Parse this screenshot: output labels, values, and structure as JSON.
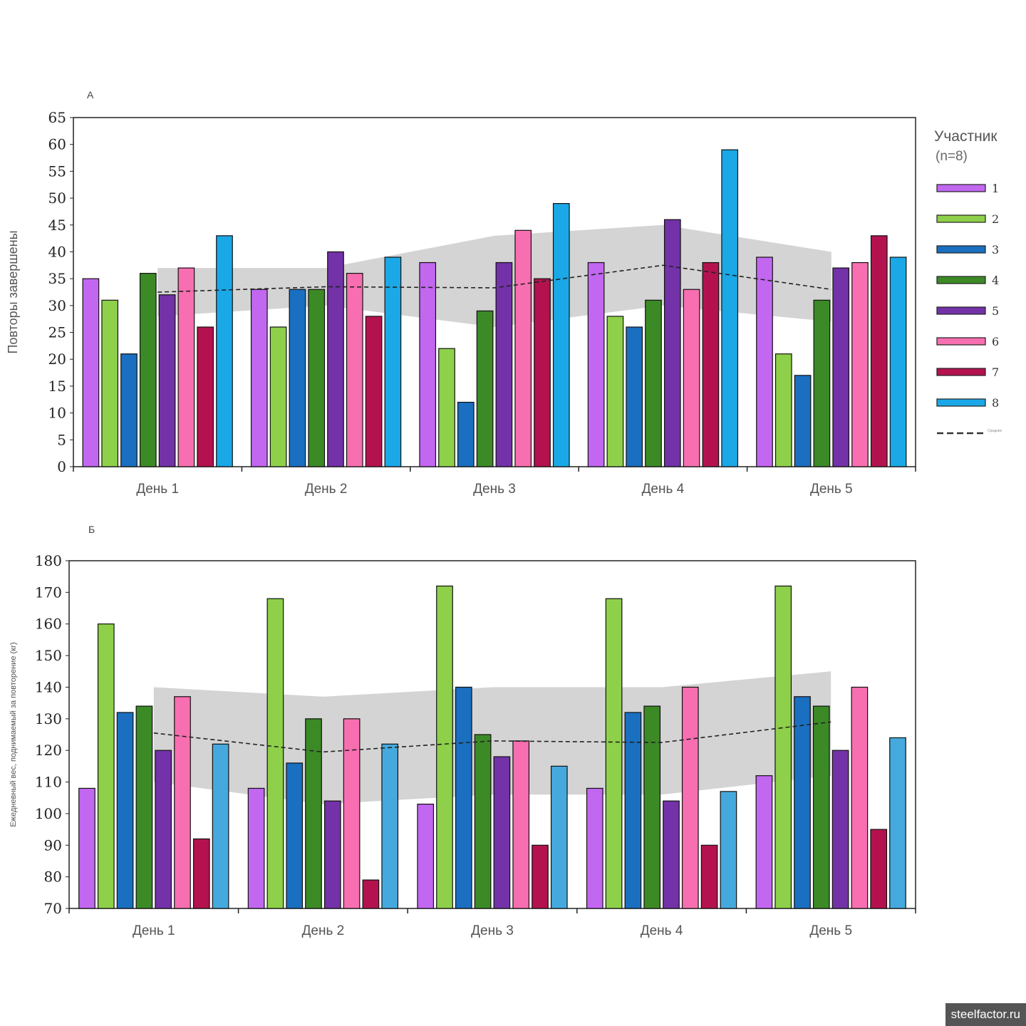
{
  "watermark": "steelfactor.ru",
  "legend": {
    "title": "Участник",
    "subtitle": "(n=8)",
    "items": [
      "1",
      "2",
      "3",
      "4",
      "5",
      "6",
      "7",
      "8"
    ],
    "mean_label": "Среднее"
  },
  "colors": [
    "#c267f0",
    "#8ed04a",
    "#1a6fc0",
    "#3b8a26",
    "#7332a8",
    "#f76fb0",
    "#b3124f",
    "#1aa8e6"
  ],
  "colors_b": [
    "#c267f0",
    "#8ed04a",
    "#1a6fc0",
    "#3b8a26",
    "#7332a8",
    "#f76fb0",
    "#b3124f",
    "#45a9dd"
  ],
  "chart_data": [
    {
      "type": "bar",
      "panel": "А",
      "title": "",
      "ylabel": "Повторы завершены",
      "xlabel": "",
      "ylim": [
        0,
        65
      ],
      "yticks": [
        0,
        5,
        10,
        15,
        20,
        25,
        30,
        35,
        40,
        45,
        50,
        55,
        60,
        65
      ],
      "categories": [
        "День 1",
        "День 2",
        "День 3",
        "День 4",
        "День 5"
      ],
      "series": [
        {
          "name": "1",
          "values": [
            35,
            33,
            38,
            38,
            39
          ]
        },
        {
          "name": "2",
          "values": [
            31,
            26,
            22,
            28,
            21
          ]
        },
        {
          "name": "3",
          "values": [
            21,
            33,
            12,
            26,
            17
          ]
        },
        {
          "name": "4",
          "values": [
            36,
            33,
            29,
            31,
            31
          ]
        },
        {
          "name": "5",
          "values": [
            32,
            40,
            38,
            46,
            37
          ]
        },
        {
          "name": "6",
          "values": [
            37,
            36,
            44,
            33,
            38
          ]
        },
        {
          "name": "7",
          "values": [
            26,
            28,
            35,
            38,
            43
          ]
        },
        {
          "name": "8",
          "values": [
            43,
            39,
            49,
            59,
            39
          ]
        }
      ],
      "mean": [
        32.5,
        33.5,
        33.3,
        37.5,
        33
      ],
      "band_upper": [
        37,
        37,
        43,
        45,
        40
      ],
      "band_lower": [
        28,
        30,
        26,
        30,
        27
      ]
    },
    {
      "type": "bar",
      "panel": "Б",
      "title": "",
      "ylabel": "Ежедневный вес, поднимаемый за повторение (кг)",
      "xlabel": "",
      "ylim": [
        70,
        180
      ],
      "yticks": [
        70,
        80,
        90,
        100,
        110,
        120,
        130,
        140,
        150,
        160,
        170,
        180
      ],
      "categories": [
        "День 1",
        "День 2",
        "День 3",
        "День 4",
        "День 5"
      ],
      "series": [
        {
          "name": "1",
          "values": [
            108,
            108,
            103,
            108,
            112
          ]
        },
        {
          "name": "2",
          "values": [
            160,
            168,
            172,
            168,
            172
          ]
        },
        {
          "name": "3",
          "values": [
            132,
            116,
            140,
            132,
            137
          ]
        },
        {
          "name": "4",
          "values": [
            134,
            130,
            125,
            134,
            134
          ]
        },
        {
          "name": "5",
          "values": [
            120,
            104,
            118,
            104,
            120
          ]
        },
        {
          "name": "6",
          "values": [
            137,
            130,
            123,
            140,
            140
          ]
        },
        {
          "name": "7",
          "values": [
            92,
            79,
            90,
            90,
            95
          ]
        },
        {
          "name": "8",
          "values": [
            122,
            122,
            115,
            107,
            124
          ]
        }
      ],
      "mean": [
        125.5,
        119.5,
        123,
        122.5,
        129
      ],
      "band_upper": [
        140,
        137,
        140,
        140,
        145
      ],
      "band_lower": [
        110,
        103,
        106,
        106,
        112
      ]
    }
  ]
}
